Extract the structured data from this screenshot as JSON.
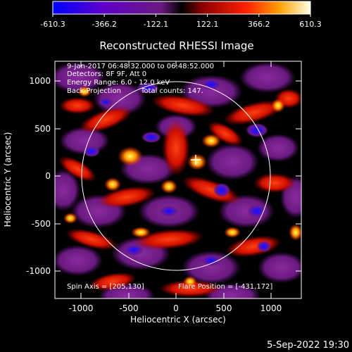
{
  "colorbar": {
    "ticks": [
      "-610.3",
      "-366.2",
      "-122.1",
      "122.1",
      "366.2",
      "610.3"
    ]
  },
  "plot": {
    "title": "Reconstructed RHESSI Image",
    "annotations": {
      "time_range": "9-Jan-2017 06:48:32.000 to 06:48:52.000",
      "detectors": "Detectors: 8F 9F, Att 0",
      "energy": "Energy Range: 6.0 - 12.0 keV",
      "method": "Back Projection",
      "total_counts": "Total counts: 147.",
      "spin_axis": "Spin Axis = [205,130]",
      "flare_position": "Flare Position = [-431,172]"
    },
    "xlabel": "Heliocentric X (arcsec)",
    "ylabel": "Heliocentric Y (arcsec)",
    "xticks": [
      "-1000",
      "-500",
      "0",
      "500",
      "1000"
    ],
    "yticks": [
      "1000",
      "500",
      "0",
      "-500",
      "-1000"
    ]
  },
  "footer": {
    "timestamp": "5-Sep-2022 19:30"
  },
  "colors": {
    "background": "#000000",
    "text": "#ffffff",
    "limb": "#ffffff"
  }
}
